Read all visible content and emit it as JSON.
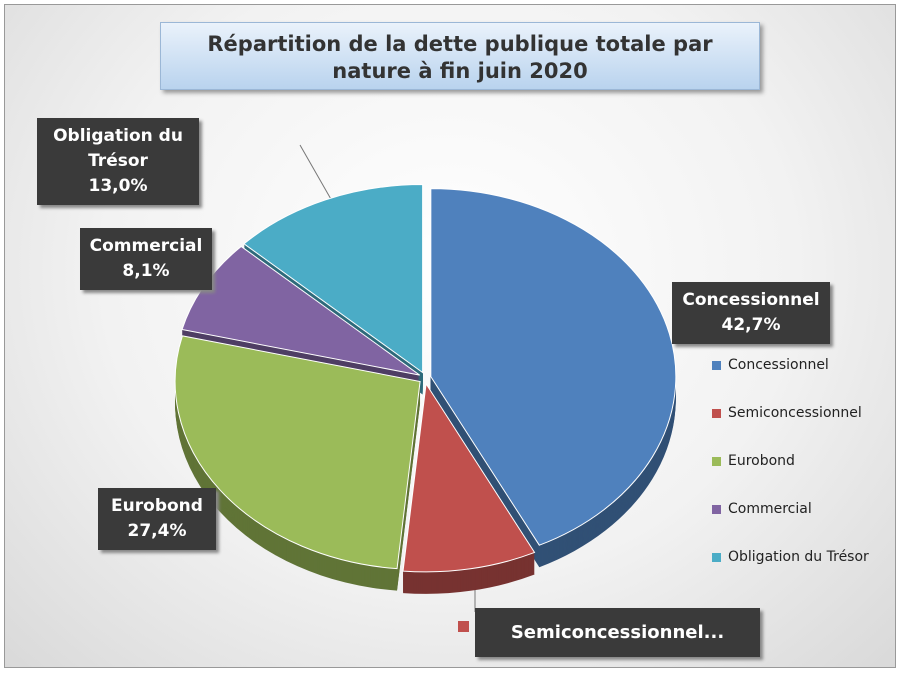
{
  "chart_data": {
    "type": "pie",
    "title": "Répartition de la dette publique totale par nature à fin juin 2020",
    "categories": [
      "Concessionnel",
      "Semiconcessionnel",
      "Eurobond",
      "Commercial",
      "Obligation du Trésor"
    ],
    "values": [
      42.7,
      8.8,
      27.4,
      8.1,
      13.0
    ],
    "value_labels": [
      "42,7%",
      null,
      "27,4%",
      "8,1%",
      "13,0%"
    ],
    "truncated_label": "Semiconcessionnel...",
    "colors": [
      "#4f81bd",
      "#c0504d",
      "#9bbb59",
      "#8064a2",
      "#4bacc6"
    ],
    "legend": "right"
  }
}
